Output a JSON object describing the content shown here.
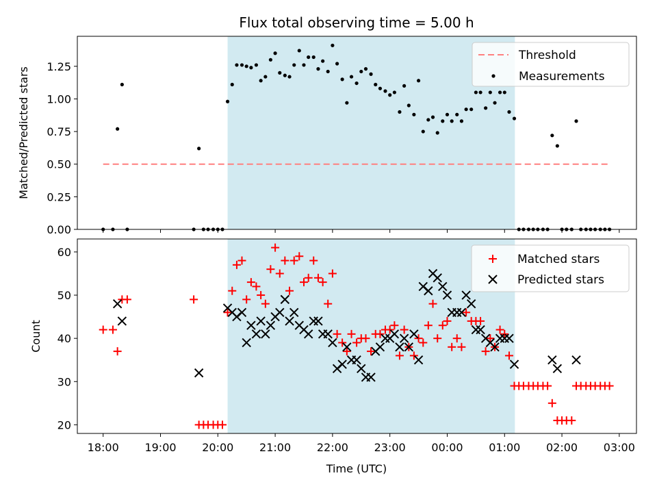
{
  "chart_data": [
    {
      "type": "scatter",
      "title": "Flux total observing time = 5.00 h",
      "xlabel": "",
      "ylabel": "Matched/Predicted stars",
      "xlim": [
        17.55,
        27.3
      ],
      "ylim": [
        0.0,
        1.48
      ],
      "yticks": [
        0.0,
        0.25,
        0.5,
        0.75,
        1.0,
        1.25
      ],
      "ytick_labels": [
        "0.00",
        "0.25",
        "0.50",
        "0.75",
        "1.00",
        "1.25"
      ],
      "observing_window": [
        20.17,
        25.18
      ],
      "window_color": "#add8e6",
      "threshold": {
        "name": "Threshold",
        "value": 0.5,
        "x_range": [
          18.0,
          26.85
        ],
        "color": "#ff7f7f"
      },
      "series": [
        {
          "name": "Measurements",
          "color": "#000000",
          "points": [
            [
              18.0,
              0.0
            ],
            [
              18.17,
              0.0
            ],
            [
              18.25,
              0.77
            ],
            [
              18.33,
              1.11
            ],
            [
              18.42,
              0.0
            ],
            [
              19.58,
              0.0
            ],
            [
              19.67,
              0.62
            ],
            [
              19.75,
              0.0
            ],
            [
              19.83,
              0.0
            ],
            [
              19.92,
              0.0
            ],
            [
              20.0,
              0.0
            ],
            [
              20.08,
              0.0
            ],
            [
              20.17,
              0.98
            ],
            [
              20.25,
              1.11
            ],
            [
              20.33,
              1.26
            ],
            [
              20.42,
              1.26
            ],
            [
              20.5,
              1.25
            ],
            [
              20.58,
              1.24
            ],
            [
              20.67,
              1.26
            ],
            [
              20.75,
              1.14
            ],
            [
              20.83,
              1.17
            ],
            [
              20.92,
              1.3
            ],
            [
              21.0,
              1.35
            ],
            [
              21.08,
              1.2
            ],
            [
              21.17,
              1.18
            ],
            [
              21.25,
              1.17
            ],
            [
              21.33,
              1.26
            ],
            [
              21.42,
              1.37
            ],
            [
              21.5,
              1.26
            ],
            [
              21.58,
              1.32
            ],
            [
              21.67,
              1.32
            ],
            [
              21.75,
              1.23
            ],
            [
              21.83,
              1.29
            ],
            [
              21.92,
              1.21
            ],
            [
              22.0,
              1.41
            ],
            [
              22.08,
              1.27
            ],
            [
              22.17,
              1.15
            ],
            [
              22.25,
              0.97
            ],
            [
              22.33,
              1.17
            ],
            [
              22.42,
              1.12
            ],
            [
              22.5,
              1.21
            ],
            [
              22.58,
              1.23
            ],
            [
              22.67,
              1.19
            ],
            [
              22.75,
              1.11
            ],
            [
              22.83,
              1.08
            ],
            [
              22.92,
              1.06
            ],
            [
              23.0,
              1.03
            ],
            [
              23.08,
              1.05
            ],
            [
              23.17,
              0.9
            ],
            [
              23.25,
              1.1
            ],
            [
              23.33,
              0.95
            ],
            [
              23.42,
              0.88
            ],
            [
              23.5,
              1.14
            ],
            [
              23.58,
              0.75
            ],
            [
              23.67,
              0.84
            ],
            [
              23.75,
              0.86
            ],
            [
              23.83,
              0.74
            ],
            [
              23.92,
              0.83
            ],
            [
              24.0,
              0.88
            ],
            [
              24.08,
              0.83
            ],
            [
              24.17,
              0.88
            ],
            [
              24.25,
              0.83
            ],
            [
              24.33,
              0.92
            ],
            [
              24.42,
              0.92
            ],
            [
              24.5,
              1.05
            ],
            [
              24.58,
              1.05
            ],
            [
              24.67,
              0.93
            ],
            [
              24.75,
              1.05
            ],
            [
              24.83,
              0.97
            ],
            [
              24.92,
              1.05
            ],
            [
              25.0,
              1.05
            ],
            [
              25.08,
              0.9
            ],
            [
              25.17,
              0.85
            ],
            [
              25.25,
              0.0
            ],
            [
              25.33,
              0.0
            ],
            [
              25.42,
              0.0
            ],
            [
              25.5,
              0.0
            ],
            [
              25.58,
              0.0
            ],
            [
              25.67,
              0.0
            ],
            [
              25.75,
              0.0
            ],
            [
              25.83,
              0.72
            ],
            [
              25.92,
              0.64
            ],
            [
              26.0,
              0.0
            ],
            [
              26.08,
              0.0
            ],
            [
              26.17,
              0.0
            ],
            [
              26.25,
              0.83
            ],
            [
              26.33,
              0.0
            ],
            [
              26.42,
              0.0
            ],
            [
              26.5,
              0.0
            ],
            [
              26.58,
              0.0
            ],
            [
              26.67,
              0.0
            ],
            [
              26.75,
              0.0
            ],
            [
              26.83,
              0.0
            ]
          ]
        }
      ],
      "legend": {
        "placement": "upper-right",
        "entries": [
          "Threshold",
          "Measurements"
        ]
      }
    },
    {
      "type": "scatter",
      "title": "",
      "xlabel": "Time (UTC)",
      "ylabel": "Count",
      "xlim": [
        17.55,
        27.3
      ],
      "ylim": [
        18.0,
        63.0
      ],
      "yticks": [
        20,
        30,
        40,
        50,
        60
      ],
      "ytick_labels": [
        "20",
        "30",
        "40",
        "50",
        "60"
      ],
      "xticks": [
        18,
        19,
        20,
        21,
        22,
        23,
        24,
        25,
        26,
        27
      ],
      "xtick_labels": [
        "18:00",
        "19:00",
        "20:00",
        "21:00",
        "22:00",
        "23:00",
        "00:00",
        "01:00",
        "02:00",
        "03:00"
      ],
      "observing_window": [
        20.17,
        25.18
      ],
      "window_color": "#add8e6",
      "series": [
        {
          "name": "Matched stars",
          "marker": "plus",
          "color": "#ff0000",
          "points": [
            [
              18.0,
              42
            ],
            [
              18.17,
              42
            ],
            [
              18.25,
              37
            ],
            [
              18.33,
              49
            ],
            [
              18.42,
              49
            ],
            [
              19.58,
              49
            ],
            [
              19.67,
              20
            ],
            [
              19.75,
              20
            ],
            [
              19.83,
              20
            ],
            [
              19.92,
              20
            ],
            [
              20.0,
              20
            ],
            [
              20.08,
              20
            ],
            [
              20.17,
              46
            ],
            [
              20.25,
              51
            ],
            [
              20.33,
              57
            ],
            [
              20.42,
              58
            ],
            [
              20.5,
              49
            ],
            [
              20.58,
              53
            ],
            [
              20.67,
              52
            ],
            [
              20.75,
              50
            ],
            [
              20.83,
              48
            ],
            [
              20.92,
              56
            ],
            [
              21.0,
              61
            ],
            [
              21.08,
              55
            ],
            [
              21.17,
              58
            ],
            [
              21.25,
              51
            ],
            [
              21.33,
              58
            ],
            [
              21.42,
              59
            ],
            [
              21.5,
              53
            ],
            [
              21.58,
              54
            ],
            [
              21.67,
              58
            ],
            [
              21.75,
              54
            ],
            [
              21.83,
              53
            ],
            [
              21.92,
              48
            ],
            [
              22.0,
              55
            ],
            [
              22.08,
              41
            ],
            [
              22.17,
              39
            ],
            [
              22.25,
              37
            ],
            [
              22.33,
              41
            ],
            [
              22.42,
              39
            ],
            [
              22.5,
              40
            ],
            [
              22.58,
              40
            ],
            [
              22.67,
              37
            ],
            [
              22.75,
              41
            ],
            [
              22.83,
              41
            ],
            [
              22.92,
              42
            ],
            [
              23.0,
              42
            ],
            [
              23.08,
              43
            ],
            [
              23.17,
              36
            ],
            [
              23.25,
              42
            ],
            [
              23.33,
              38
            ],
            [
              23.42,
              36
            ],
            [
              23.5,
              40
            ],
            [
              23.58,
              39
            ],
            [
              23.67,
              43
            ],
            [
              23.75,
              48
            ],
            [
              23.83,
              40
            ],
            [
              23.92,
              43
            ],
            [
              24.0,
              44
            ],
            [
              24.08,
              38
            ],
            [
              24.17,
              40
            ],
            [
              24.25,
              38
            ],
            [
              24.33,
              46
            ],
            [
              24.42,
              44
            ],
            [
              24.5,
              44
            ],
            [
              24.58,
              44
            ],
            [
              24.67,
              37
            ],
            [
              24.75,
              40
            ],
            [
              24.83,
              38
            ],
            [
              24.92,
              42
            ],
            [
              25.0,
              41
            ],
            [
              25.08,
              36
            ],
            [
              25.17,
              29
            ],
            [
              25.25,
              29
            ],
            [
              25.33,
              29
            ],
            [
              25.42,
              29
            ],
            [
              25.5,
              29
            ],
            [
              25.58,
              29
            ],
            [
              25.67,
              29
            ],
            [
              25.75,
              29
            ],
            [
              25.83,
              25
            ],
            [
              25.92,
              21
            ],
            [
              26.0,
              21
            ],
            [
              26.08,
              21
            ],
            [
              26.17,
              21
            ],
            [
              26.25,
              29
            ],
            [
              26.33,
              29
            ],
            [
              26.42,
              29
            ],
            [
              26.5,
              29
            ],
            [
              26.58,
              29
            ],
            [
              26.67,
              29
            ],
            [
              26.75,
              29
            ],
            [
              26.83,
              29
            ]
          ]
        },
        {
          "name": "Predicted stars",
          "marker": "x",
          "color": "#000000",
          "points": [
            [
              18.25,
              48
            ],
            [
              18.33,
              44
            ],
            [
              19.67,
              32
            ],
            [
              20.17,
              47
            ],
            [
              20.25,
              46
            ],
            [
              20.33,
              45
            ],
            [
              20.42,
              46
            ],
            [
              20.5,
              39
            ],
            [
              20.58,
              43
            ],
            [
              20.67,
              41
            ],
            [
              20.75,
              44
            ],
            [
              20.83,
              41
            ],
            [
              20.92,
              43
            ],
            [
              21.0,
              45
            ],
            [
              21.08,
              46
            ],
            [
              21.17,
              49
            ],
            [
              21.25,
              44
            ],
            [
              21.33,
              46
            ],
            [
              21.42,
              43
            ],
            [
              21.5,
              42
            ],
            [
              21.58,
              41
            ],
            [
              21.67,
              44
            ],
            [
              21.75,
              44
            ],
            [
              21.83,
              41
            ],
            [
              21.92,
              41
            ],
            [
              22.0,
              39
            ],
            [
              22.08,
              33
            ],
            [
              22.17,
              34
            ],
            [
              22.25,
              38
            ],
            [
              22.33,
              35
            ],
            [
              22.42,
              35
            ],
            [
              22.5,
              33
            ],
            [
              22.58,
              31
            ],
            [
              22.67,
              31
            ],
            [
              22.75,
              37
            ],
            [
              22.83,
              38
            ],
            [
              22.92,
              40
            ],
            [
              23.0,
              40
            ],
            [
              23.08,
              41
            ],
            [
              23.17,
              38
            ],
            [
              23.25,
              40
            ],
            [
              23.33,
              38
            ],
            [
              23.42,
              41
            ],
            [
              23.5,
              35
            ],
            [
              23.58,
              52
            ],
            [
              23.67,
              51
            ],
            [
              23.75,
              55
            ],
            [
              23.83,
              54
            ],
            [
              23.92,
              52
            ],
            [
              24.0,
              50
            ],
            [
              24.08,
              46
            ],
            [
              24.17,
              46
            ],
            [
              24.25,
              46
            ],
            [
              24.33,
              50
            ],
            [
              24.42,
              48
            ],
            [
              24.5,
              42
            ],
            [
              24.58,
              42
            ],
            [
              24.67,
              40
            ],
            [
              24.75,
              39
            ],
            [
              24.83,
              38
            ],
            [
              24.92,
              40
            ],
            [
              25.0,
              40
            ],
            [
              25.08,
              40
            ],
            [
              25.17,
              34
            ],
            [
              25.83,
              35
            ],
            [
              25.92,
              33
            ],
            [
              26.25,
              35
            ]
          ]
        }
      ],
      "legend": {
        "placement": "upper-right",
        "entries": [
          "Matched stars",
          "Predicted stars"
        ]
      }
    }
  ]
}
